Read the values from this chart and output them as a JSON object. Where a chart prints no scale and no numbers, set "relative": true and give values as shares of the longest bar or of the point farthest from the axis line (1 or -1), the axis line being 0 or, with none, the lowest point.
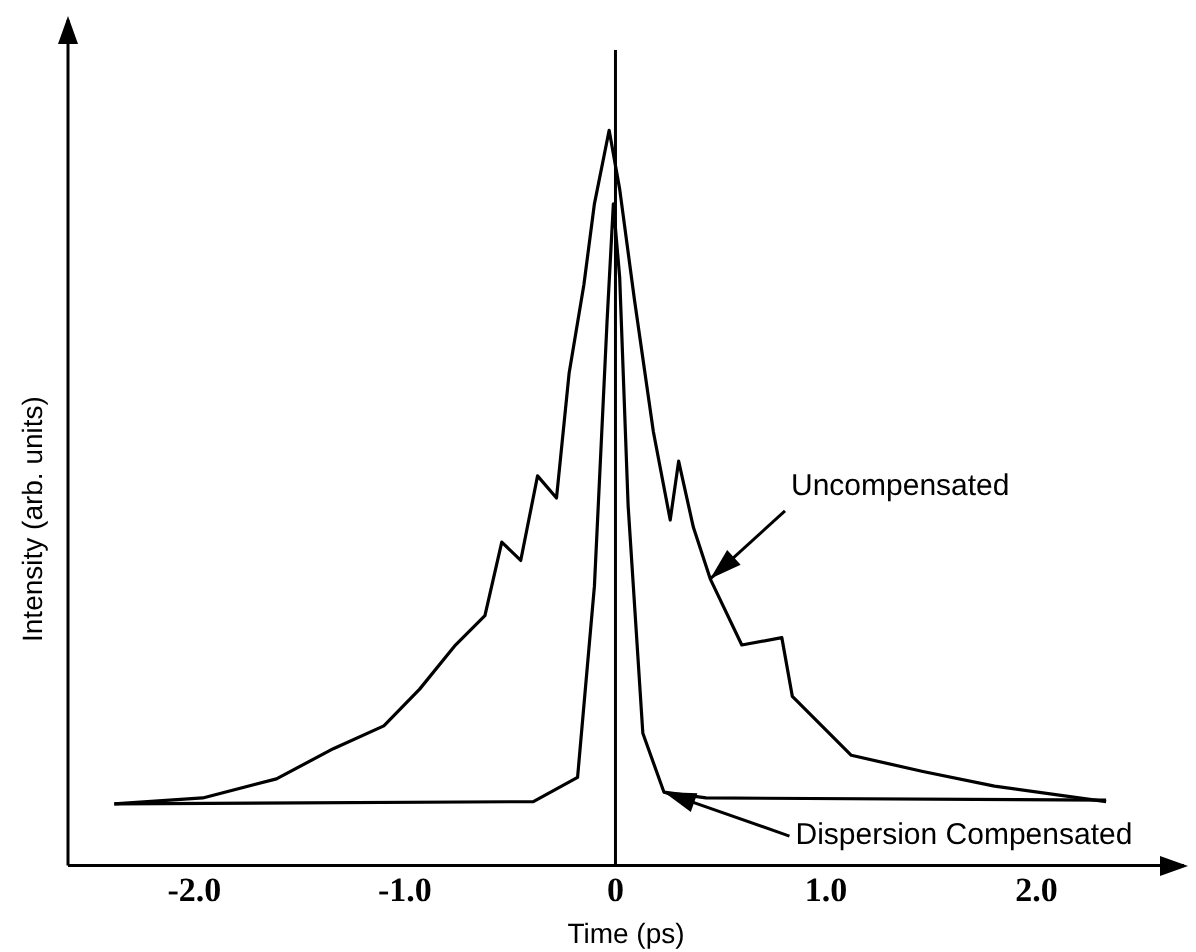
{
  "chart_data": {
    "type": "line",
    "xlabel": "Time (ps)",
    "ylabel": "Intensity (arb. units)",
    "relative": true,
    "xlim": [
      -2.6,
      2.7
    ],
    "xticks": [
      {
        "value": -2,
        "label": "-2.0"
      },
      {
        "value": -1,
        "label": "-1.0"
      },
      0,
      {
        "value": 1,
        "label": "1.0"
      },
      {
        "value": 2,
        "label": "2.0"
      }
    ],
    "series": [
      {
        "color": "#000000",
        "x": [
          -2.38,
          -1.96,
          -1.61,
          -1.34,
          -1.1,
          -0.93,
          -0.76,
          -0.62,
          -0.54,
          -0.45,
          -0.37,
          -0.28,
          -0.22,
          -0.15,
          -0.1,
          -0.03,
          0.02,
          0.09,
          0.18,
          0.26,
          0.3,
          0.37,
          0.45,
          0.6,
          0.79,
          0.84,
          0.98,
          1.12,
          1.46,
          1.8,
          2.33
        ],
        "values": [
          0.084,
          0.092,
          0.118,
          0.159,
          0.19,
          0.24,
          0.3,
          0.34,
          0.44,
          0.415,
          0.53,
          0.5,
          0.67,
          0.79,
          0.9,
          1.0,
          0.92,
          0.77,
          0.59,
          0.47,
          0.55,
          0.46,
          0.39,
          0.3,
          0.31,
          0.23,
          0.19,
          0.15,
          0.128,
          0.108,
          0.087
        ]
      },
      {
        "color": "#000000",
        "x": [
          -2.38,
          -0.39,
          -0.18,
          -0.1,
          -0.04,
          -0.01,
          0.02,
          0.06,
          0.13,
          0.23,
          0.43,
          2.33
        ],
        "values": [
          0.084,
          0.087,
          0.12,
          0.38,
          0.74,
          0.9,
          0.8,
          0.49,
          0.18,
          0.1,
          0.092,
          0.089
        ]
      }
    ],
    "ref_lines": [
      {
        "axis": "x",
        "value": 0,
        "color": "#000000"
      }
    ],
    "annotations": [
      {
        "text": "Uncompensated",
        "x": 0.45,
        "y": 0.39
      },
      {
        "text": "Dispersion Compensated",
        "x": 0.23,
        "y": 0.1
      }
    ],
    "grid": false,
    "legend": false,
    "marker": "none",
    "line_style": "solid"
  }
}
